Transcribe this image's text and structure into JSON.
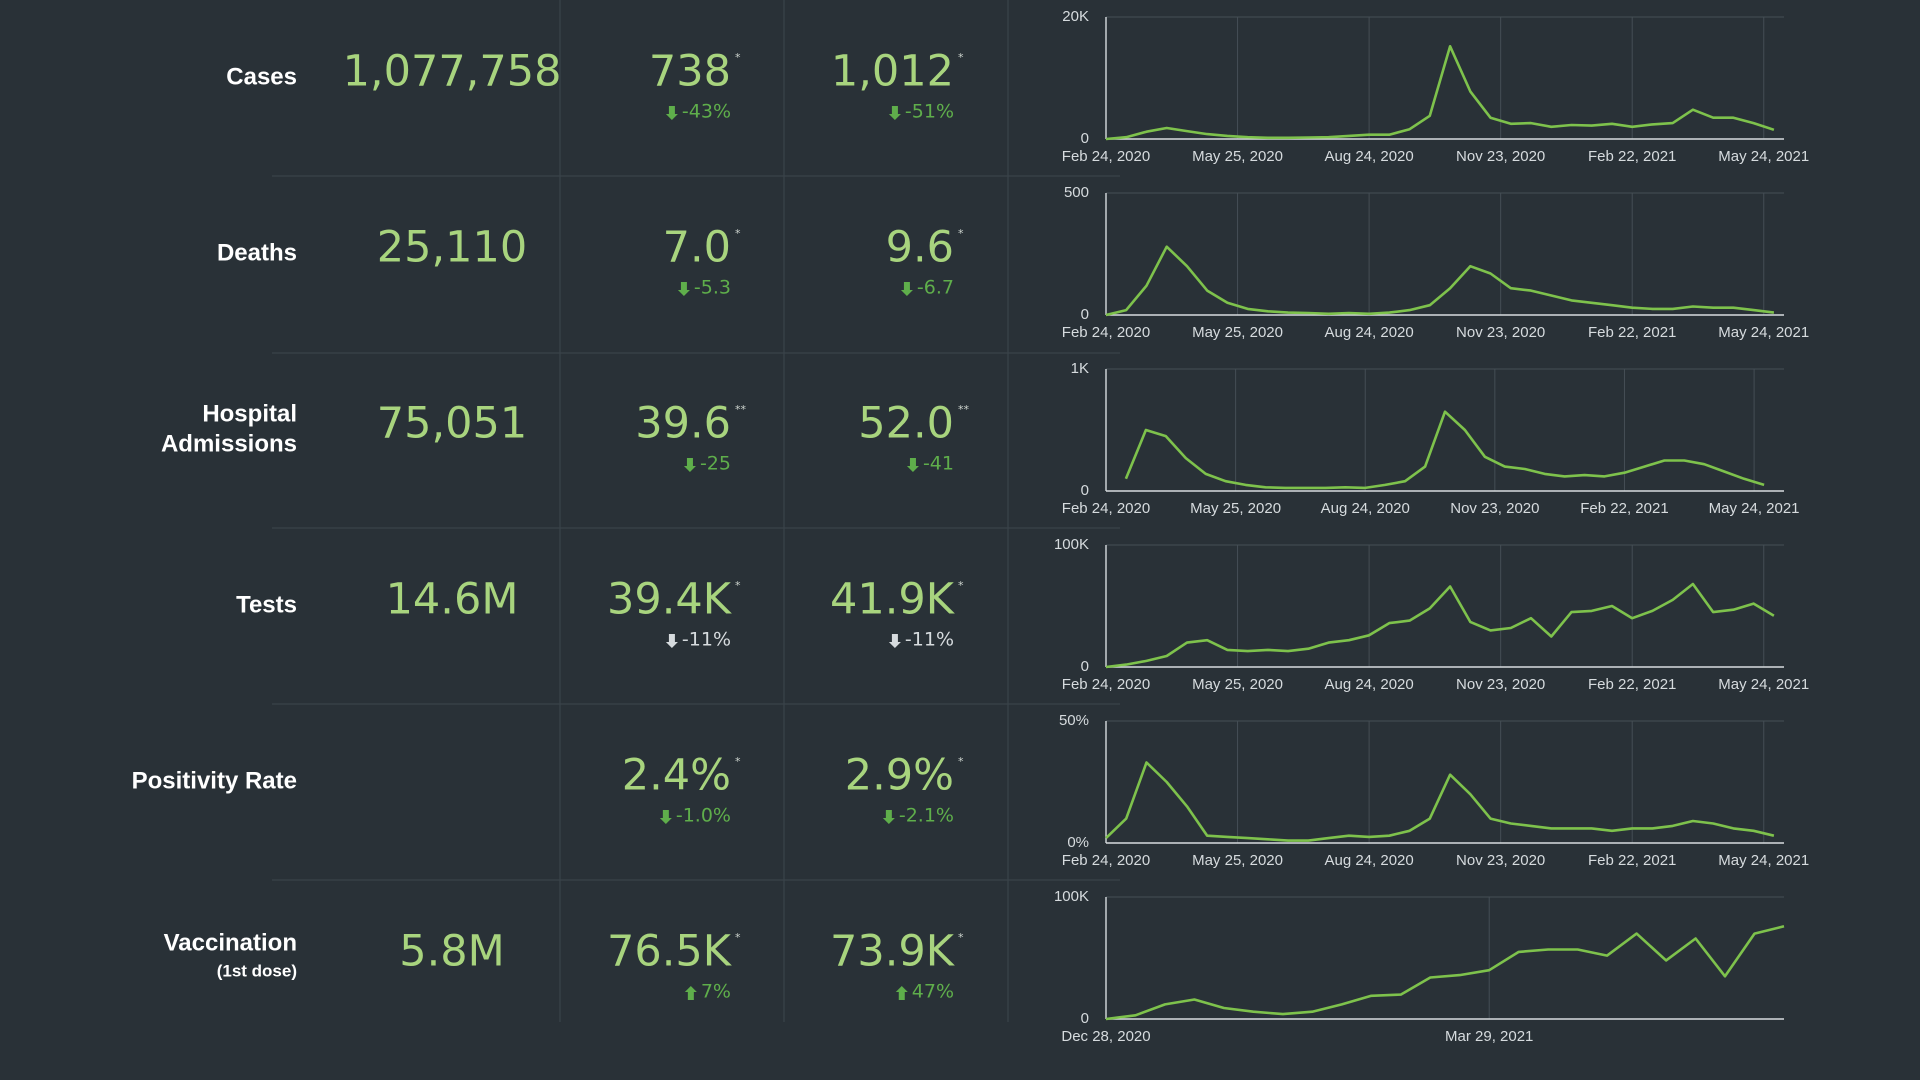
{
  "rows": [
    {
      "label": [
        "Cases"
      ],
      "total": "1,077,758",
      "avg7": "738",
      "avg7_mark": "*",
      "avg7_change": "-43%",
      "avg14": "1,012",
      "avg14_mark": "*",
      "avg14_change": "-51%",
      "direction": "down",
      "change_color": "#5fae4b"
    },
    {
      "label": [
        "Deaths"
      ],
      "total": "25,110",
      "avg7": "7.0",
      "avg7_mark": "*",
      "avg7_change": "-5.3",
      "avg14": "9.6",
      "avg14_mark": "*",
      "avg14_change": "-6.7",
      "direction": "down",
      "change_color": "#5fae4b"
    },
    {
      "label": [
        "Hospital",
        "Admissions"
      ],
      "total": "75,051",
      "avg7": "39.6",
      "avg7_mark": "**",
      "avg7_change": "-25",
      "avg14": "52.0",
      "avg14_mark": "**",
      "avg14_change": "-41",
      "direction": "down",
      "change_color": "#5fae4b"
    },
    {
      "label": [
        "Tests"
      ],
      "total": "14.6M",
      "avg7": "39.4K",
      "avg7_mark": "*",
      "avg7_change": "-11%",
      "avg14": "41.9K",
      "avg14_mark": "*",
      "avg14_change": "-11%",
      "direction": "down",
      "change_color": "#d6dbde"
    },
    {
      "label": [
        "Positivity Rate"
      ],
      "avg7": "2.4%",
      "avg7_mark": "*",
      "avg7_change": "-1.0%",
      "avg14": "2.9%",
      "avg14_mark": "*",
      "avg14_change": "-2.1%",
      "direction": "down",
      "change_color": "#5fae4b"
    },
    {
      "label": [
        "Vaccination"
      ],
      "sublabel": "(1st dose)",
      "total": "5.8M",
      "avg7": "76.5K",
      "avg7_mark": "*",
      "avg7_change": "7%",
      "avg14": "73.9K",
      "avg14_mark": "*",
      "avg14_change": "47%",
      "direction": "up",
      "change_color": "#5fae4b"
    }
  ],
  "chart_data": [
    {
      "type": "line",
      "color": "#7ec24c",
      "grid": true,
      "x": [
        "2020-02-24",
        "2020-03-09",
        "2020-03-23",
        "2020-04-06",
        "2020-04-20",
        "2020-05-04",
        "2020-05-18",
        "2020-06-01",
        "2020-06-15",
        "2020-06-29",
        "2020-07-13",
        "2020-07-27",
        "2020-08-10",
        "2020-08-24",
        "2020-09-07",
        "2020-09-21",
        "2020-10-05",
        "2020-10-19",
        "2020-11-02",
        "2020-11-16",
        "2020-11-30",
        "2020-12-14",
        "2020-12-28",
        "2021-01-11",
        "2021-01-25",
        "2021-02-08",
        "2021-02-22",
        "2021-03-08",
        "2021-03-22",
        "2021-04-05",
        "2021-04-19",
        "2021-05-03",
        "2021-05-17",
        "2021-05-31"
      ],
      "values": [
        0,
        300,
        1200,
        1800,
        1300,
        800,
        500,
        300,
        200,
        200,
        250,
        300,
        500,
        700,
        700,
        1600,
        3800,
        15200,
        7800,
        3500,
        2500,
        2600,
        2000,
        2300,
        2200,
        2500,
        2000,
        2400,
        2600,
        4800,
        3500,
        3500,
        2600,
        1500
      ],
      "xlim": [
        "2020-02-24",
        "2021-06-07"
      ],
      "xticks": [
        {
          "value": "2020-02-24",
          "label": "Feb 24, 2020"
        },
        {
          "value": "2020-05-25",
          "label": "May 25, 2020"
        },
        {
          "value": "2020-08-24",
          "label": "Aug 24, 2020"
        },
        {
          "value": "2020-11-23",
          "label": "Nov 23, 2020"
        },
        {
          "value": "2021-02-22",
          "label": "Feb 22, 2021"
        },
        {
          "value": "2021-05-24",
          "label": "May 24, 2021"
        }
      ],
      "ylim": [
        0,
        20000
      ],
      "yticks": [
        0,
        {
          "value": 20000,
          "label": "20K"
        }
      ]
    },
    {
      "type": "line",
      "color": "#7ec24c",
      "grid": true,
      "x": [
        "2020-02-24",
        "2020-03-09",
        "2020-03-23",
        "2020-04-06",
        "2020-04-20",
        "2020-05-04",
        "2020-05-18",
        "2020-06-01",
        "2020-06-15",
        "2020-06-29",
        "2020-07-13",
        "2020-07-27",
        "2020-08-10",
        "2020-08-24",
        "2020-09-07",
        "2020-09-21",
        "2020-10-05",
        "2020-10-19",
        "2020-11-02",
        "2020-11-16",
        "2020-11-30",
        "2020-12-14",
        "2020-12-28",
        "2021-01-11",
        "2021-01-25",
        "2021-02-08",
        "2021-02-22",
        "2021-03-08",
        "2021-03-22",
        "2021-04-05",
        "2021-04-19",
        "2021-05-03",
        "2021-05-17",
        "2021-05-31"
      ],
      "values": [
        0,
        20,
        120,
        280,
        200,
        100,
        50,
        25,
        15,
        10,
        8,
        5,
        8,
        5,
        10,
        20,
        40,
        110,
        200,
        170,
        110,
        100,
        80,
        60,
        50,
        40,
        30,
        25,
        25,
        35,
        30,
        30,
        20,
        10
      ],
      "xlim": [
        "2020-02-24",
        "2021-06-07"
      ],
      "xticks": [
        {
          "value": "2020-02-24",
          "label": "Feb 24, 2020"
        },
        {
          "value": "2020-05-25",
          "label": "May 25, 2020"
        },
        {
          "value": "2020-08-24",
          "label": "Aug 24, 2020"
        },
        {
          "value": "2020-11-23",
          "label": "Nov 23, 2020"
        },
        {
          "value": "2021-02-22",
          "label": "Feb 22, 2021"
        },
        {
          "value": "2021-05-24",
          "label": "May 24, 2021"
        }
      ],
      "ylim": [
        0,
        500
      ],
      "yticks": [
        0,
        500
      ]
    },
    {
      "type": "line",
      "color": "#7ec24c",
      "grid": true,
      "x": [
        "2020-02-24",
        "2020-03-09",
        "2020-03-23",
        "2020-04-06",
        "2020-04-20",
        "2020-05-04",
        "2020-05-18",
        "2020-06-01",
        "2020-06-15",
        "2020-06-29",
        "2020-07-13",
        "2020-07-27",
        "2020-08-10",
        "2020-08-24",
        "2020-09-07",
        "2020-09-21",
        "2020-10-05",
        "2020-10-19",
        "2020-11-02",
        "2020-11-16",
        "2020-11-30",
        "2020-12-14",
        "2020-12-28",
        "2021-01-11",
        "2021-01-25",
        "2021-02-08",
        "2021-02-22",
        "2021-03-08",
        "2021-03-22",
        "2021-04-05",
        "2021-04-19",
        "2021-05-03",
        "2021-05-17",
        "2021-05-31"
      ],
      "values": [
        null,
        100,
        500,
        450,
        270,
        140,
        80,
        50,
        30,
        25,
        25,
        25,
        30,
        25,
        50,
        80,
        200,
        650,
        500,
        280,
        200,
        180,
        140,
        120,
        130,
        120,
        150,
        200,
        250,
        250,
        220,
        160,
        100,
        50
      ],
      "xlim": [
        "2020-02-24",
        "2021-06-14"
      ],
      "xticks": [
        {
          "value": "2020-02-24",
          "label": "Feb 24, 2020"
        },
        {
          "value": "2020-05-25",
          "label": "May 25, 2020"
        },
        {
          "value": "2020-08-24",
          "label": "Aug 24, 2020"
        },
        {
          "value": "2020-11-23",
          "label": "Nov 23, 2020"
        },
        {
          "value": "2021-02-22",
          "label": "Feb 22, 2021"
        },
        {
          "value": "2021-05-24",
          "label": "May 24, 2021"
        }
      ],
      "ylim": [
        0,
        1000
      ],
      "yticks": [
        0,
        {
          "value": 1000,
          "label": "1K"
        }
      ]
    },
    {
      "type": "line",
      "color": "#7ec24c",
      "grid": true,
      "x": [
        "2020-02-24",
        "2020-03-09",
        "2020-03-23",
        "2020-04-06",
        "2020-04-20",
        "2020-05-04",
        "2020-05-18",
        "2020-06-01",
        "2020-06-15",
        "2020-06-29",
        "2020-07-13",
        "2020-07-27",
        "2020-08-10",
        "2020-08-24",
        "2020-09-07",
        "2020-09-21",
        "2020-10-05",
        "2020-10-19",
        "2020-11-02",
        "2020-11-16",
        "2020-11-30",
        "2020-12-14",
        "2020-12-28",
        "2021-01-11",
        "2021-01-25",
        "2021-02-08",
        "2021-02-22",
        "2021-03-08",
        "2021-03-22",
        "2021-04-05",
        "2021-04-19",
        "2021-05-03",
        "2021-05-17",
        "2021-05-31"
      ],
      "values": [
        0,
        2000,
        5000,
        9000,
        20000,
        22000,
        14000,
        13000,
        14000,
        13000,
        15000,
        20000,
        22000,
        26000,
        36000,
        38000,
        48000,
        66000,
        37000,
        30000,
        32000,
        40000,
        25000,
        45000,
        46000,
        50000,
        40000,
        46000,
        55000,
        68000,
        45000,
        47000,
        52000,
        42000
      ],
      "xlim": [
        "2020-02-24",
        "2021-06-07"
      ],
      "xticks": [
        {
          "value": "2020-02-24",
          "label": "Feb 24, 2020"
        },
        {
          "value": "2020-05-25",
          "label": "May 25, 2020"
        },
        {
          "value": "2020-08-24",
          "label": "Aug 24, 2020"
        },
        {
          "value": "2020-11-23",
          "label": "Nov 23, 2020"
        },
        {
          "value": "2021-02-22",
          "label": "Feb 22, 2021"
        },
        {
          "value": "2021-05-24",
          "label": "May 24, 2021"
        }
      ],
      "ylim": [
        0,
        100000
      ],
      "yticks": [
        0,
        {
          "value": 100000,
          "label": "100K"
        }
      ]
    },
    {
      "type": "line",
      "color": "#7ec24c",
      "grid": true,
      "x": [
        "2020-02-24",
        "2020-03-09",
        "2020-03-23",
        "2020-04-06",
        "2020-04-20",
        "2020-05-04",
        "2020-05-18",
        "2020-06-01",
        "2020-06-15",
        "2020-06-29",
        "2020-07-13",
        "2020-07-27",
        "2020-08-10",
        "2020-08-24",
        "2020-09-07",
        "2020-09-21",
        "2020-10-05",
        "2020-10-19",
        "2020-11-02",
        "2020-11-16",
        "2020-11-30",
        "2020-12-14",
        "2020-12-28",
        "2021-01-11",
        "2021-01-25",
        "2021-02-08",
        "2021-02-22",
        "2021-03-08",
        "2021-03-22",
        "2021-04-05",
        "2021-04-19",
        "2021-05-03",
        "2021-05-17",
        "2021-05-31"
      ],
      "values": [
        2,
        10,
        33,
        25,
        15,
        3,
        2.5,
        2,
        1.5,
        1,
        1,
        2,
        3,
        2.5,
        3,
        5,
        10,
        28,
        20,
        10,
        8,
        7,
        6,
        6,
        6,
        5,
        6,
        6,
        7,
        9,
        8,
        6,
        5,
        3
      ],
      "xlim": [
        "2020-02-24",
        "2021-06-07"
      ],
      "xticks": [
        {
          "value": "2020-02-24",
          "label": "Feb 24, 2020"
        },
        {
          "value": "2020-05-25",
          "label": "May 25, 2020"
        },
        {
          "value": "2020-08-24",
          "label": "Aug 24, 2020"
        },
        {
          "value": "2020-11-23",
          "label": "Nov 23, 2020"
        },
        {
          "value": "2021-02-22",
          "label": "Feb 22, 2021"
        },
        {
          "value": "2021-05-24",
          "label": "May 24, 2021"
        }
      ],
      "ylim": [
        0,
        50
      ],
      "yticks": [
        {
          "value": 0,
          "label": "0%"
        },
        {
          "value": 50,
          "label": "50%"
        }
      ]
    },
    {
      "type": "line",
      "color": "#7ec24c",
      "grid": true,
      "x": [
        "2020-12-28",
        "2021-01-04",
        "2021-01-11",
        "2021-01-18",
        "2021-01-25",
        "2021-02-01",
        "2021-02-08",
        "2021-02-15",
        "2021-02-22",
        "2021-03-01",
        "2021-03-08",
        "2021-03-15",
        "2021-03-22",
        "2021-03-29",
        "2021-04-05",
        "2021-04-12",
        "2021-04-19",
        "2021-04-26",
        "2021-05-03",
        "2021-05-10",
        "2021-05-17",
        "2021-05-24",
        "2021-05-31",
        "2021-06-07"
      ],
      "values": [
        0,
        3000,
        12000,
        16000,
        9000,
        6000,
        4000,
        6000,
        12000,
        19000,
        20000,
        34000,
        36000,
        40000,
        55000,
        57000,
        57000,
        52000,
        70000,
        48000,
        66000,
        35000,
        70000,
        76000
      ],
      "xlim": [
        "2020-12-28",
        "2021-06-07"
      ],
      "xticks": [
        {
          "value": "2020-12-28",
          "label": "Dec 28, 2020"
        },
        {
          "value": "2021-03-29",
          "label": "Mar 29, 2021"
        }
      ],
      "ylim": [
        0,
        100000
      ],
      "yticks": [
        0,
        {
          "value": 100000,
          "label": "100K"
        }
      ]
    }
  ]
}
